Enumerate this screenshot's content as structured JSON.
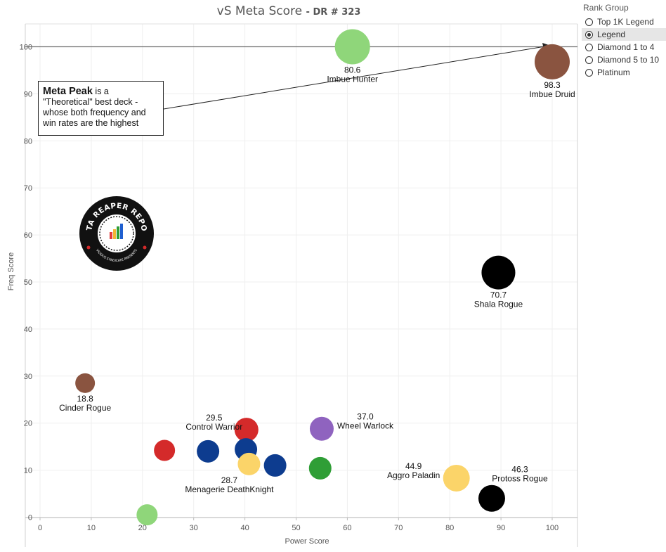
{
  "legend": {
    "title": "Rank Group",
    "items": [
      {
        "label": "Top 1K Legend",
        "selected": false
      },
      {
        "label": "Legend",
        "selected": true
      },
      {
        "label": "Diamond 1 to 4",
        "selected": false
      },
      {
        "label": "Diamond 5 to 10",
        "selected": false
      },
      {
        "label": "Platinum",
        "selected": false
      }
    ]
  },
  "annotation": {
    "bold": "Meta Peak",
    "text": " is a \"Theoretical\" best deck - whose both frequency and win rates are the highest"
  },
  "logo": {
    "top_text": "DATA REAPER REPORT",
    "bottom_text": "VICIOUS SYNDICATE PRESENTS"
  },
  "colors": {
    "hunter": "#8fd67a",
    "druid": "#8a5440",
    "rogue": "#000000",
    "warrior": "#d42a2a",
    "warlock": "#8f63bf",
    "paladin": "#fbd469",
    "deathknight": "#0d3c8f",
    "shaman": "#2f9e36",
    "mage": "#8fd67a"
  },
  "chart_data": {
    "type": "scatter",
    "title": "vS Meta Score",
    "subtitle": "DR # 323",
    "xlabel": "Power Score",
    "ylabel": "Freq Score",
    "xlim": [
      0,
      105
    ],
    "ylim": [
      0,
      105
    ],
    "xticks": [
      0,
      10,
      20,
      30,
      40,
      50,
      60,
      70,
      80,
      90,
      100
    ],
    "yticks": [
      0,
      10,
      20,
      30,
      40,
      50,
      60,
      70,
      80,
      90,
      100
    ],
    "reference_line": {
      "y": 100,
      "label": "Meta Peak"
    },
    "points": [
      {
        "x": 61,
        "y": 100,
        "color": "hunter",
        "score": "80.6",
        "name": "Imbue Hunter"
      },
      {
        "x": 100,
        "y": 96.8,
        "color": "druid",
        "score": "98.3",
        "name": "Imbue Druid"
      },
      {
        "x": 89.5,
        "y": 52,
        "color": "rogue",
        "score": "70.7",
        "name": "Shala Rogue"
      },
      {
        "x": 8.8,
        "y": 28.5,
        "color": "druid",
        "score": "18.8",
        "name": "Cinder Rogue"
      },
      {
        "x": 55,
        "y": 18.8,
        "color": "warlock",
        "score": "37.0",
        "name": "Wheel Warlock"
      },
      {
        "x": 40.3,
        "y": 18.6,
        "color": "warrior",
        "score": "29.5",
        "name": "Control Warrior"
      },
      {
        "x": 24.3,
        "y": 14.2,
        "color": "warrior",
        "score": "",
        "name": ""
      },
      {
        "x": 32.8,
        "y": 14,
        "color": "deathknight",
        "score": "",
        "name": ""
      },
      {
        "x": 40.2,
        "y": 14.4,
        "color": "deathknight",
        "score": "",
        "name": ""
      },
      {
        "x": 40.8,
        "y": 11.3,
        "color": "paladin",
        "score": "28.7",
        "name": "Menagerie DeathKnight"
      },
      {
        "x": 45.9,
        "y": 11,
        "color": "deathknight",
        "score": "",
        "name": ""
      },
      {
        "x": 54.7,
        "y": 10.4,
        "color": "shaman",
        "score": "",
        "name": ""
      },
      {
        "x": 81.3,
        "y": 8.3,
        "color": "paladin",
        "score": "44.9",
        "name": "Aggro Paladin"
      },
      {
        "x": 88.2,
        "y": 4,
        "color": "rogue",
        "score": "46.3",
        "name": "Protoss Rogue"
      },
      {
        "x": 20.9,
        "y": 0.5,
        "color": "mage",
        "score": "",
        "name": ""
      }
    ]
  }
}
